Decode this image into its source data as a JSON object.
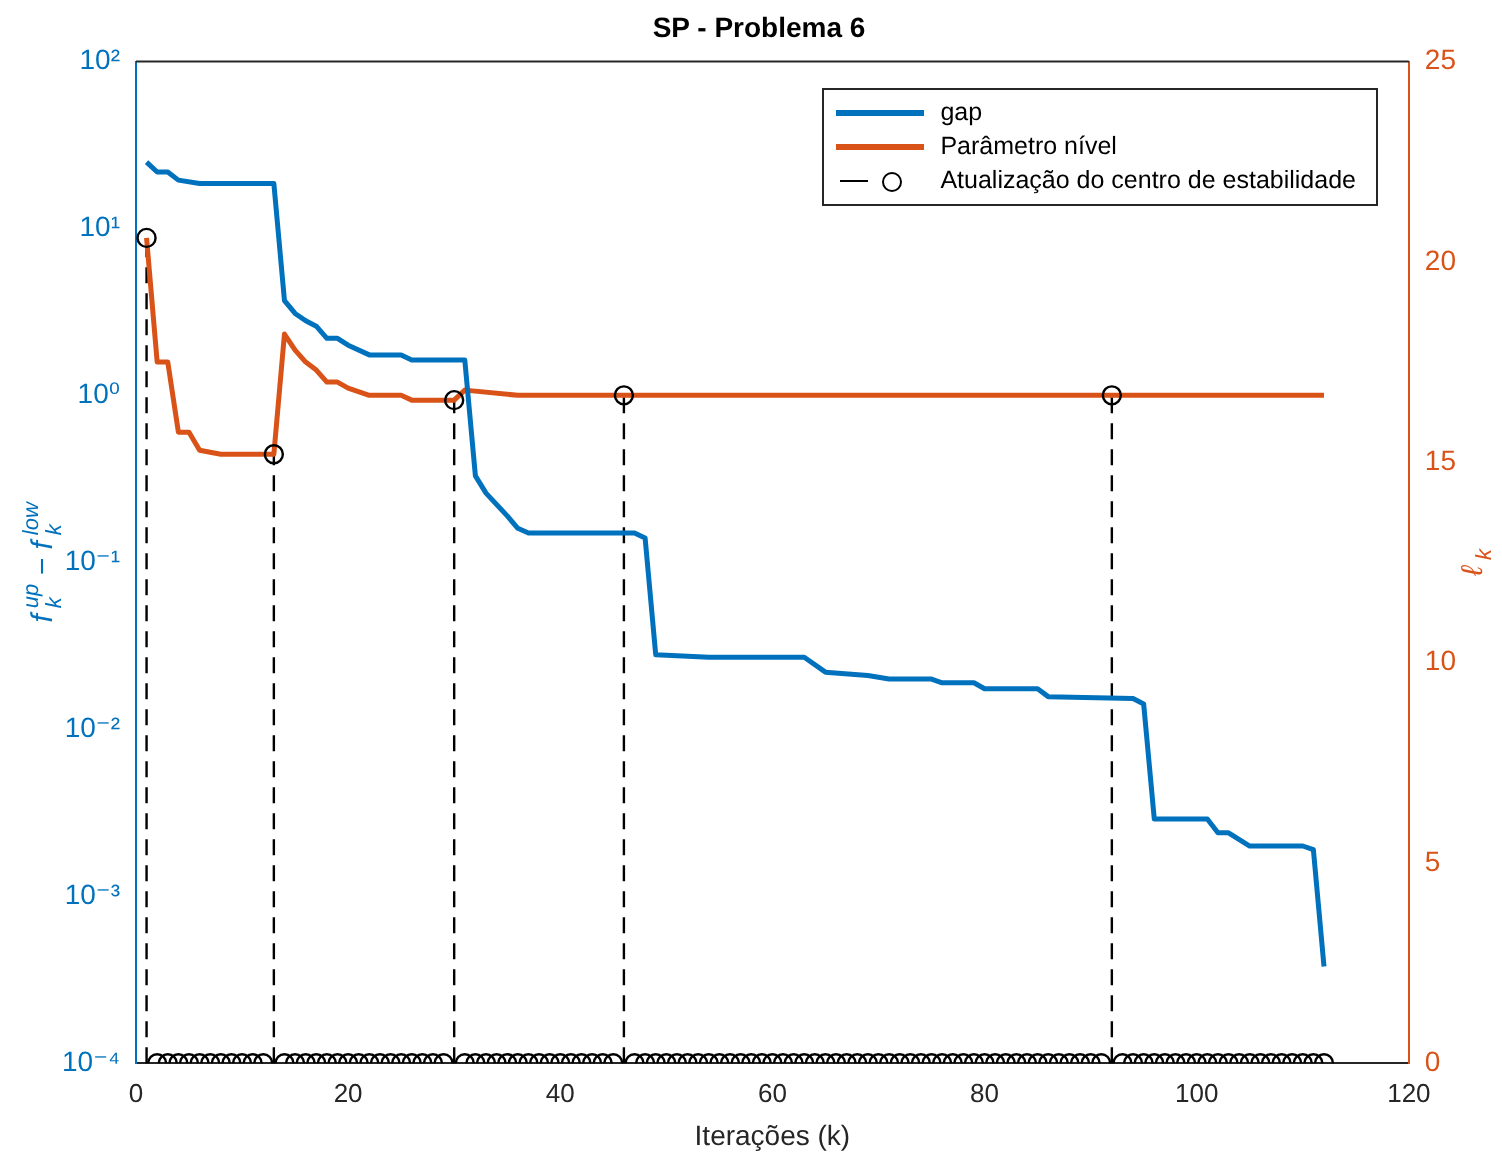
{
  "chart_data": {
    "type": "line",
    "title": "SP - Problema 6",
    "xlabel": "Iterações (k)",
    "ylabel": "f$_{k}$$^{up}$ − f$_{k}$$^{low}$",
    "y2label": "ℓ$_{k}$",
    "log": "y",
    "legend": "top right",
    "xlim": [
      0,
      120
    ],
    "xticks": [
      0,
      20,
      40,
      60,
      80,
      100,
      120
    ],
    "ylim": [
      0.0001,
      100
    ],
    "yticks": [
      {
        "value": 0.0001,
        "label": "10⁻⁴"
      },
      {
        "value": 0.001,
        "label": "10⁻³"
      },
      {
        "value": 0.01,
        "label": "10⁻²"
      },
      {
        "value": 0.1,
        "label": "10⁻¹"
      },
      {
        "value": 1,
        "label": "10⁰"
      },
      {
        "value": 10,
        "label": "10¹"
      },
      {
        "value": 100,
        "label": "10²"
      }
    ],
    "y2lim": [
      0,
      25
    ],
    "y2ticks": [
      0,
      5,
      10,
      15,
      20,
      25
    ],
    "series": [
      {
        "name": "gap",
        "color": "#0072bd",
        "x": [
          1,
          2,
          3,
          4,
          6,
          13,
          14,
          15,
          16,
          17,
          18,
          19,
          20,
          22,
          25,
          26,
          31,
          32,
          33,
          35,
          36,
          37,
          47,
          48,
          49,
          54,
          63,
          65,
          69,
          71,
          75,
          76,
          79,
          80,
          85,
          86,
          94,
          95,
          96,
          101,
          102,
          103,
          105,
          110,
          111,
          112
        ],
        "values": [
          25,
          21.8,
          21.8,
          19.5,
          18.6,
          18.6,
          3.7,
          3.1,
          2.8,
          2.6,
          2.2,
          2.2,
          2.0,
          1.75,
          1.75,
          1.63,
          1.63,
          0.33,
          0.26,
          0.19,
          0.16,
          0.15,
          0.15,
          0.14,
          0.028,
          0.027,
          0.027,
          0.022,
          0.021,
          0.02,
          0.02,
          0.019,
          0.019,
          0.0175,
          0.0175,
          0.0157,
          0.0153,
          0.0142,
          0.0029,
          0.0029,
          0.0024,
          0.0024,
          0.002,
          0.002,
          0.0019,
          0.00038
        ]
      },
      {
        "name": "Parâmetro nível",
        "axis": "y2",
        "color": "#d95319",
        "x": [
          1,
          2,
          3,
          4,
          5,
          6,
          8,
          13,
          14,
          15,
          16,
          17,
          18,
          19,
          20,
          22,
          25,
          26,
          30,
          31,
          36,
          112
        ],
        "values": [
          20.6,
          17.5,
          17.5,
          15.75,
          15.75,
          15.3,
          15.2,
          15.2,
          18.2,
          17.8,
          17.5,
          17.3,
          17.0,
          17.0,
          16.85,
          16.67,
          16.67,
          16.55,
          16.55,
          16.8,
          16.67,
          16.67
        ]
      },
      {
        "name": "Atualização do centro de estabilidade",
        "type": "lollipop",
        "axis": "y2",
        "color": "#000000",
        "marker": "circle",
        "line_style": "dashed",
        "x": [
          1,
          2,
          3,
          4,
          5,
          6,
          7,
          8,
          9,
          10,
          11,
          12,
          13,
          14,
          15,
          16,
          17,
          18,
          19,
          20,
          21,
          22,
          23,
          24,
          25,
          26,
          27,
          28,
          29,
          30,
          31,
          32,
          33,
          34,
          35,
          36,
          37,
          38,
          39,
          40,
          41,
          42,
          43,
          44,
          45,
          46,
          47,
          48,
          49,
          50,
          51,
          52,
          53,
          54,
          55,
          56,
          57,
          58,
          59,
          60,
          61,
          62,
          63,
          64,
          65,
          66,
          67,
          68,
          69,
          70,
          71,
          72,
          73,
          74,
          75,
          76,
          77,
          78,
          79,
          80,
          81,
          82,
          83,
          84,
          85,
          86,
          87,
          88,
          89,
          90,
          91,
          92,
          93,
          94,
          95,
          96,
          97,
          98,
          99,
          100,
          101,
          102,
          103,
          104,
          105,
          106,
          107,
          108,
          109,
          110,
          111,
          112
        ],
        "values": [
          20.6,
          0,
          0,
          0,
          0,
          0,
          0,
          0,
          0,
          0,
          0,
          0,
          15.2,
          0,
          0,
          0,
          0,
          0,
          0,
          0,
          0,
          0,
          0,
          0,
          0,
          0,
          0,
          0,
          0,
          16.55,
          0,
          0,
          0,
          0,
          0,
          0,
          0,
          0,
          0,
          0,
          0,
          0,
          0,
          0,
          0,
          16.67,
          0,
          0,
          0,
          0,
          0,
          0,
          0,
          0,
          0,
          0,
          0,
          0,
          0,
          0,
          0,
          0,
          0,
          0,
          0,
          0,
          0,
          0,
          0,
          0,
          0,
          0,
          0,
          0,
          0,
          0,
          0,
          0,
          0,
          0,
          0,
          0,
          0,
          0,
          0,
          0,
          0,
          0,
          0,
          0,
          0,
          16.67,
          0,
          0,
          0,
          0,
          0,
          0,
          0,
          0,
          0,
          0,
          0,
          0,
          0,
          0,
          0,
          0,
          0,
          0,
          0,
          0
        ]
      }
    ]
  }
}
